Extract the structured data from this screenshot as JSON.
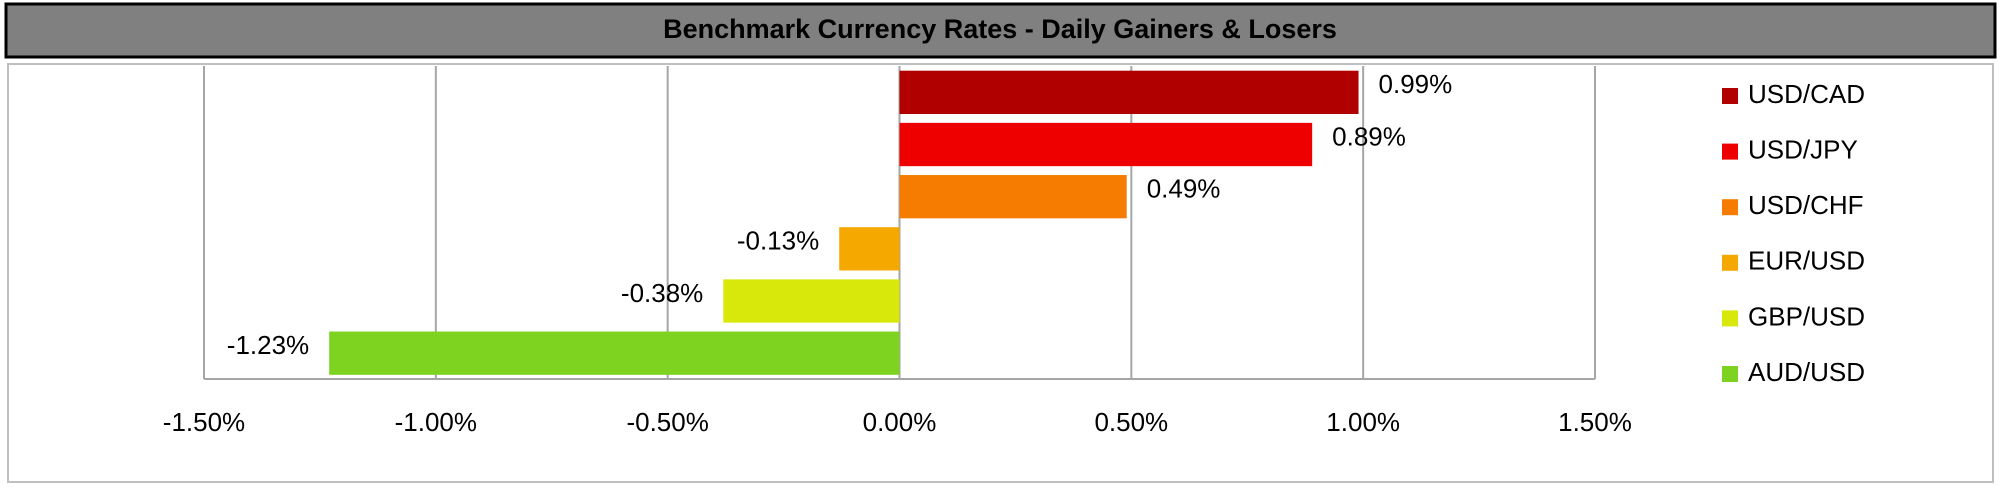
{
  "chart_data": {
    "type": "hbar",
    "title": "Benchmark Currency Rates - Daily Gainers & Losers",
    "categories": [
      "USD/CAD",
      "USD/JPY",
      "USD/CHF",
      "EUR/USD",
      "GBP/USD",
      "AUD/USD"
    ],
    "values": [
      0.99,
      0.89,
      0.49,
      -0.13,
      -0.38,
      -1.23
    ],
    "value_labels": [
      "0.99%",
      "0.89%",
      "0.49%",
      "-0.13%",
      "-0.38%",
      "-1.23%"
    ],
    "colors": [
      "#b00000",
      "#ee0000",
      "#f57c00",
      "#f5a800",
      "#d8e80a",
      "#7ed321"
    ],
    "xlim": [
      -1.5,
      1.5
    ],
    "xticks": [
      {
        "value": -1.5,
        "label": "-1.50%"
      },
      {
        "value": -1.0,
        "label": "-1.00%"
      },
      {
        "value": -0.5,
        "label": "-0.50%"
      },
      {
        "value": 0,
        "label": "0.00%"
      },
      {
        "value": 0.5,
        "label": "0.50%"
      },
      {
        "value": 1.0,
        "label": "1.00%"
      },
      {
        "value": 1.5,
        "label": "1.50%"
      }
    ],
    "grid": true,
    "legend": "right"
  }
}
